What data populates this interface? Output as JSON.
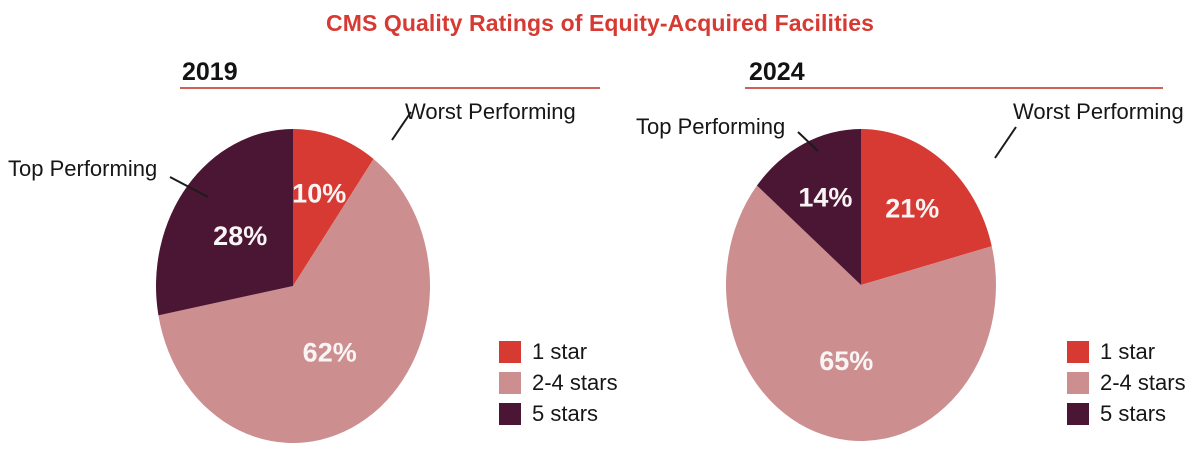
{
  "title": "CMS Quality Ratings of Equity-Acquired Facilities",
  "colors": {
    "accent_red": "#d63a32",
    "rose": "#cc8e8f",
    "dark_maroon": "#4b1634",
    "underline_red": "#cb6158",
    "callout_line": "#1b1b1b",
    "text_dark": "#161616",
    "percent_text": "#faf5f5",
    "background": "#ffffff"
  },
  "legend": {
    "items": [
      {
        "label": "1 star",
        "color": "#d63a32"
      },
      {
        "label": "2-4 stars",
        "color": "#cc8e8f"
      },
      {
        "label": "5 stars",
        "color": "#4b1634"
      }
    ]
  },
  "chart_data": [
    {
      "type": "pie",
      "year": "2019",
      "start_angle_deg": 0,
      "direction": "clockwise",
      "legend_position": "right",
      "slices": [
        {
          "label": "1 star",
          "value": 10,
          "color": "#d63a32",
          "annotation": "Worst Performing"
        },
        {
          "label": "2-4 stars",
          "value": 62,
          "color": "#cc8e8f",
          "annotation": ""
        },
        {
          "label": "5 stars",
          "value": 28,
          "color": "#4b1634",
          "annotation": "Top Performing"
        }
      ]
    },
    {
      "type": "pie",
      "year": "2024",
      "start_angle_deg": 0,
      "direction": "clockwise",
      "legend_position": "right",
      "slices": [
        {
          "label": "1 star",
          "value": 21,
          "color": "#d63a32",
          "annotation": "Worst Performing"
        },
        {
          "label": "2-4 stars",
          "value": 65,
          "color": "#cc8e8f",
          "annotation": ""
        },
        {
          "label": "5 stars",
          "value": 14,
          "color": "#4b1634",
          "annotation": "Top Performing"
        }
      ]
    }
  ]
}
